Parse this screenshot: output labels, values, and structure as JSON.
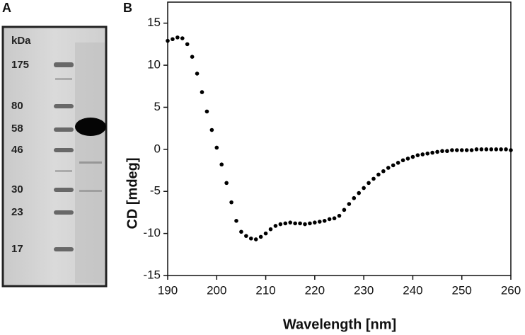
{
  "panels": {
    "a": {
      "label": "A",
      "unit": "kDa",
      "markers": [
        175,
        80,
        58,
        46,
        30,
        23,
        17
      ]
    }
  },
  "chart_data": {
    "type": "scatter",
    "panel_label": "B",
    "x_label": "Wavelength [nm]",
    "y_label": "CD [mdeg]",
    "xlim": [
      190,
      260
    ],
    "ylim": [
      -15,
      17.5
    ],
    "xticks": [
      190,
      200,
      210,
      220,
      230,
      240,
      250,
      260
    ],
    "yticks": [
      -15,
      -10,
      -5,
      0,
      5,
      10,
      15
    ],
    "series": [
      {
        "color": "#000000",
        "x": [
          190,
          191,
          192,
          193,
          194,
          195,
          196,
          197,
          198,
          199,
          200,
          201,
          202,
          203,
          204,
          205,
          206,
          207,
          208,
          209,
          210,
          211,
          212,
          213,
          214,
          215,
          216,
          217,
          218,
          219,
          220,
          221,
          222,
          223,
          224,
          225,
          226,
          227,
          228,
          229,
          230,
          231,
          232,
          233,
          234,
          235,
          236,
          237,
          238,
          239,
          240,
          241,
          242,
          243,
          244,
          245,
          246,
          247,
          248,
          249,
          250,
          251,
          252,
          253,
          254,
          255,
          256,
          257,
          258,
          259,
          260
        ],
        "values": [
          12.9,
          13.1,
          13.3,
          13.2,
          12.5,
          11.0,
          9.0,
          6.8,
          4.5,
          2.3,
          0.2,
          -1.8,
          -4.0,
          -6.3,
          -8.5,
          -9.8,
          -10.3,
          -10.6,
          -10.7,
          -10.4,
          -10.0,
          -9.5,
          -9.1,
          -8.9,
          -8.8,
          -8.7,
          -8.8,
          -8.8,
          -8.9,
          -8.8,
          -8.7,
          -8.6,
          -8.5,
          -8.3,
          -8.2,
          -7.9,
          -7.2,
          -6.5,
          -5.8,
          -5.2,
          -4.6,
          -4.0,
          -3.5,
          -3.0,
          -2.6,
          -2.2,
          -1.9,
          -1.6,
          -1.3,
          -1.1,
          -0.9,
          -0.7,
          -0.6,
          -0.5,
          -0.4,
          -0.3,
          -0.2,
          -0.2,
          -0.1,
          -0.1,
          -0.1,
          -0.1,
          -0.1,
          0.0,
          0.0,
          0.0,
          0.0,
          0.0,
          0.0,
          0.0,
          -0.1
        ]
      }
    ]
  }
}
